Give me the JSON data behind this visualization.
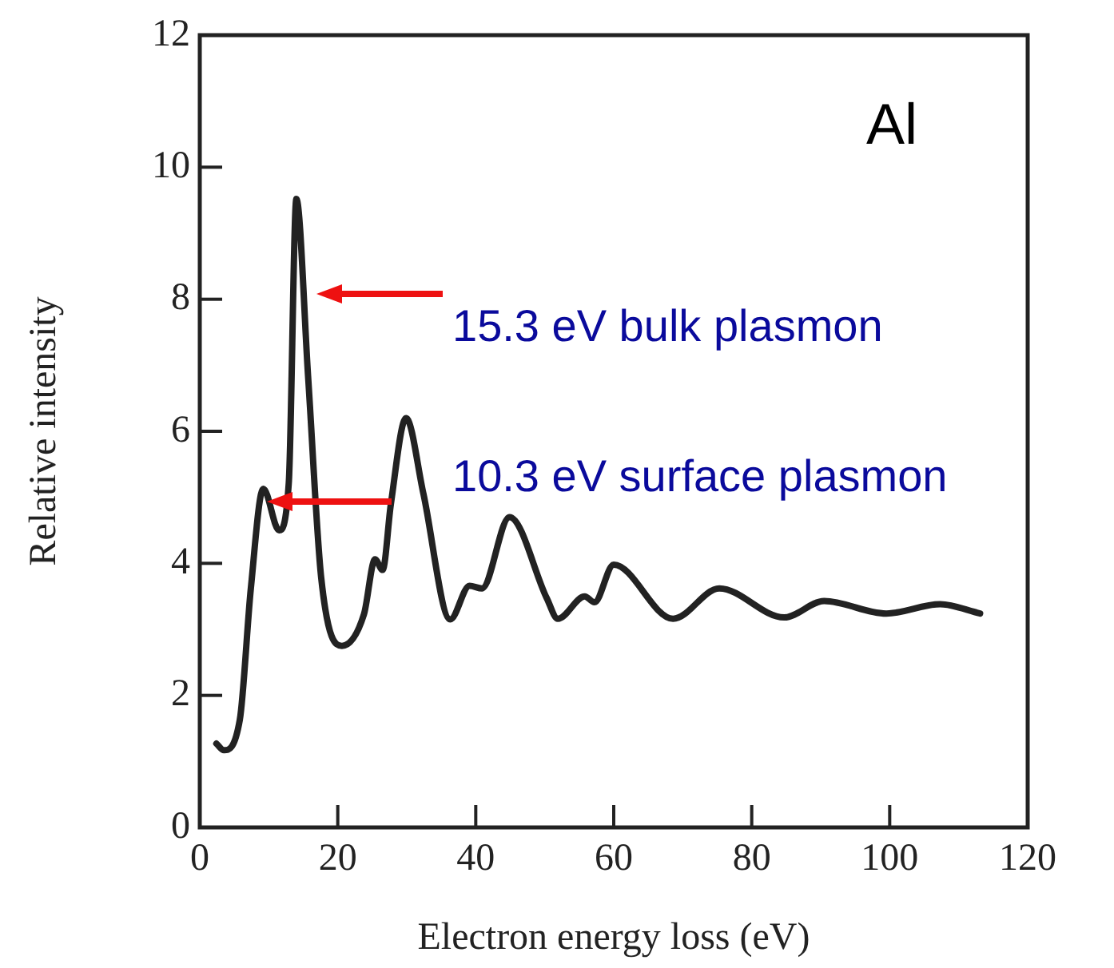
{
  "chart_data": {
    "type": "line",
    "xlabel": "Electron energy loss (eV)",
    "ylabel": "Relative intensity",
    "x": [
      2.4,
      3.5,
      5.8,
      7.4,
      9.2,
      11.5,
      12.9,
      14.0,
      15.7,
      17.6,
      20.6,
      23.8,
      25.4,
      26.5,
      27.7,
      29.9,
      32.4,
      36.3,
      39.1,
      40.9,
      44.9,
      50.3,
      51.9,
      55.8,
      57.2,
      60.0,
      68.6,
      75.3,
      84.7,
      90.5,
      99.5,
      107.3,
      113.1
    ],
    "series": [
      {
        "color": "#222222",
        "values": [
          1.27,
          1.17,
          1.63,
          3.62,
          5.13,
          4.5,
          5.22,
          9.52,
          6.83,
          3.78,
          2.75,
          3.23,
          4.06,
          3.9,
          4.9,
          6.2,
          5.06,
          3.15,
          3.66,
          3.62,
          4.7,
          3.47,
          3.16,
          3.5,
          3.41,
          3.98,
          3.16,
          3.62,
          3.18,
          3.43,
          3.24,
          3.38,
          3.24
        ]
      }
    ],
    "xlim": [
      0,
      120
    ],
    "xticks": [
      0,
      20,
      40,
      60,
      80,
      100,
      120
    ],
    "ylim": [
      0,
      12
    ],
    "yticks": [
      0,
      2,
      4,
      6,
      8,
      10,
      12
    ],
    "grid": false,
    "legend": false,
    "marker": "none",
    "line_style": "solid",
    "annotations": [
      "Al",
      "15.3 eV bulk plasmon",
      "10.3 eV surface plasmon"
    ]
  }
}
